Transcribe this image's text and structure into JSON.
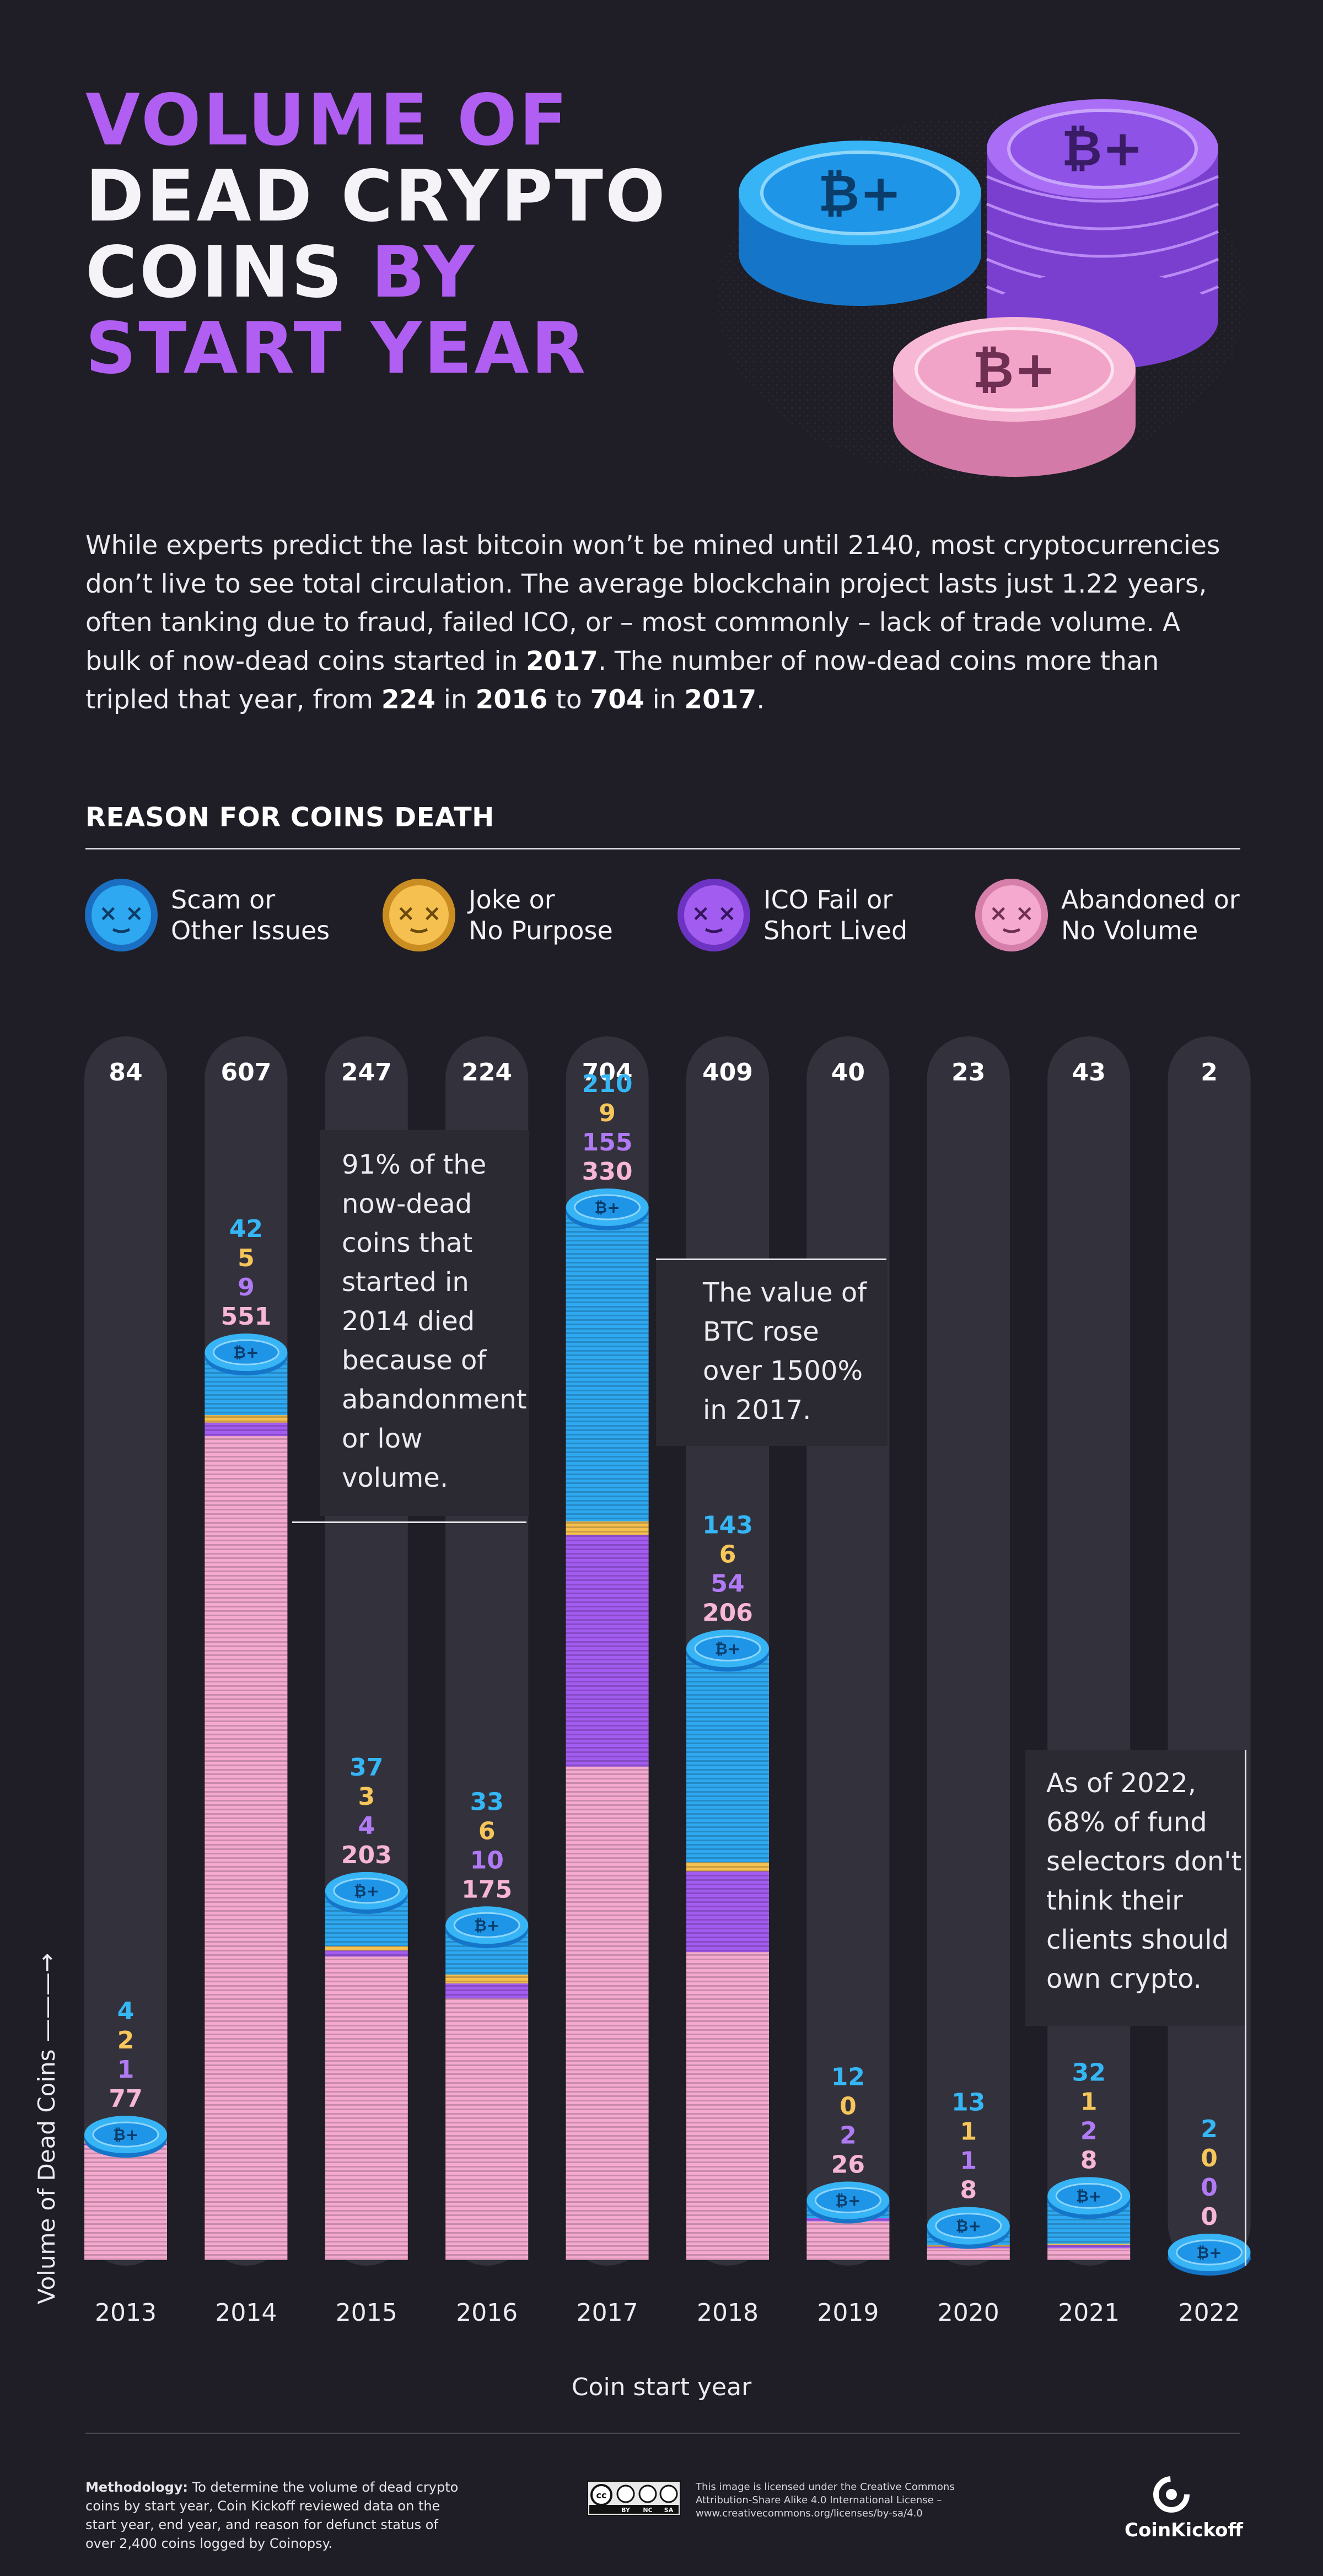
{
  "title": {
    "line1": "VOLUME OF",
    "line2": "DEAD CRYPTO",
    "line3a": "COINS",
    "line3b": "BY",
    "line4": "START YEAR"
  },
  "intro": {
    "part1": "While experts predict the last bitcoin won’t be mined until 2140, most cryptocurrencies don’t live to see total circulation. The average blockchain project lasts just 1.22 years, often tanking due to fraud, failed ICO, or – most commonly – lack of trade volume. A bulk of now-dead coins started in ",
    "b1": "2017",
    "part2": ". The number of now-dead coins more than tripled that year, from ",
    "b2": "224",
    "part3": " in ",
    "b3": "2016",
    "part4": " to ",
    "b4": "704",
    "part5": " in ",
    "b5": "2017",
    "part6": "."
  },
  "legend_title": "REASON FOR COINS DEATH",
  "legend": [
    {
      "line1": "Scam or",
      "line2": "Other Issues",
      "color": "#2ea8f0",
      "icon": "dead-face-icon"
    },
    {
      "line1": "Joke or",
      "line2": "No Purpose",
      "color": "#f5c04f",
      "icon": "dead-face-icon"
    },
    {
      "line1": "ICO Fail or",
      "line2": "Short Lived",
      "color": "#a35cf0",
      "icon": "dead-face-icon"
    },
    {
      "line1": "Abandoned or",
      "line2": "No Volume",
      "color": "#f5a9cf",
      "icon": "dead-face-icon"
    }
  ],
  "colors": {
    "scam": "#2ea8f0",
    "joke": "#f5c04f",
    "ico": "#a35cf0",
    "abandoned": "#f5a9cf",
    "track": "#33323c",
    "background": "#1f1e26"
  },
  "chart_data": {
    "type": "bar",
    "stacked": true,
    "categories": [
      "2013",
      "2014",
      "2015",
      "2016",
      "2017",
      "2018",
      "2019",
      "2020",
      "2021",
      "2022"
    ],
    "totals": [
      84,
      607,
      247,
      224,
      704,
      409,
      40,
      23,
      43,
      2
    ],
    "series": [
      {
        "name": "Scam or Other Issues",
        "values": [
          4,
          42,
          37,
          33,
          210,
          143,
          12,
          13,
          32,
          2
        ]
      },
      {
        "name": "Joke or No Purpose",
        "values": [
          2,
          5,
          3,
          6,
          9,
          6,
          0,
          1,
          1,
          0
        ]
      },
      {
        "name": "ICO Fail or Short Lived",
        "values": [
          1,
          9,
          4,
          10,
          155,
          54,
          2,
          1,
          2,
          0
        ]
      },
      {
        "name": "Abandoned or No Volume",
        "values": [
          77,
          551,
          203,
          175,
          330,
          206,
          26,
          8,
          8,
          0
        ]
      }
    ],
    "xlabel": "Coin start year",
    "ylabel": "Volume of Dead Coins",
    "ylim": [
      0,
      704
    ],
    "annotations": {
      "note_2014": "91% of the now-dead coins that started in 2014 died because of abandonment or low volume.",
      "note_2017": "The value of BTC rose over 1500% in 2017.",
      "note_2022": "As of 2022, 68% of fund selectors don't think their clients should own crypto."
    }
  },
  "footer": {
    "method_label": "Methodology:",
    "method_text": " To determine the volume of dead crypto coins by start year, Coin Kickoff reviewed data on the start year, end year, and reason for defunct status of over 2,400 coins logged by Coinopsy.",
    "license_text": "This image is licensed under the Creative Commons Attribution-Share Alike 4.0 International License – www.creativecommons.org/licenses/by-sa/4.0",
    "cc_labels": [
      "BY",
      "NC",
      "SA"
    ],
    "brand": "CoinKickoff"
  }
}
